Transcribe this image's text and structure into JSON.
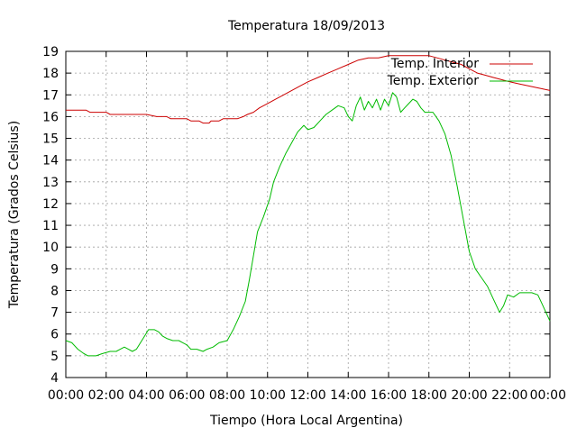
{
  "chart_data": {
    "type": "line",
    "title": "Temperatura 18/09/2013",
    "xlabel": "Tiempo (Hora Local Argentina)",
    "ylabel": "Temperatura (Grados Celsius)",
    "xlim": [
      0,
      24
    ],
    "ylim": [
      4,
      19
    ],
    "grid": true,
    "legend_position": "top-right",
    "x_tick_labels": [
      "00:00",
      "02:00",
      "04:00",
      "06:00",
      "08:00",
      "10:00",
      "12:00",
      "14:00",
      "16:00",
      "18:00",
      "20:00",
      "22:00",
      "00:00"
    ],
    "y_tick_labels": [
      "4",
      "5",
      "6",
      "7",
      "8",
      "9",
      "10",
      "11",
      "12",
      "13",
      "14",
      "15",
      "16",
      "17",
      "18",
      "19"
    ],
    "series": [
      {
        "name": "Temp. Interior",
        "color": "#cc0000",
        "points": [
          [
            0,
            16.3
          ],
          [
            1,
            16.3
          ],
          [
            1.2,
            16.2
          ],
          [
            2,
            16.2
          ],
          [
            2.2,
            16.1
          ],
          [
            3,
            16.1
          ],
          [
            4,
            16.1
          ],
          [
            4.5,
            16.0
          ],
          [
            5,
            16.0
          ],
          [
            5.2,
            15.9
          ],
          [
            6,
            15.9
          ],
          [
            6.2,
            15.8
          ],
          [
            6.6,
            15.8
          ],
          [
            6.8,
            15.7
          ],
          [
            7.1,
            15.7
          ],
          [
            7.2,
            15.8
          ],
          [
            7.6,
            15.8
          ],
          [
            7.8,
            15.9
          ],
          [
            8.5,
            15.9
          ],
          [
            8.8,
            16.0
          ],
          [
            9,
            16.1
          ],
          [
            9.3,
            16.2
          ],
          [
            9.6,
            16.4
          ],
          [
            10,
            16.6
          ],
          [
            10.4,
            16.8
          ],
          [
            10.8,
            17.0
          ],
          [
            11.2,
            17.2
          ],
          [
            11.6,
            17.4
          ],
          [
            12,
            17.6
          ],
          [
            12.5,
            17.8
          ],
          [
            13,
            18.0
          ],
          [
            13.5,
            18.2
          ],
          [
            14,
            18.4
          ],
          [
            14.5,
            18.6
          ],
          [
            15,
            18.7
          ],
          [
            15.5,
            18.7
          ],
          [
            16,
            18.8
          ],
          [
            17,
            18.8
          ],
          [
            17.5,
            18.8
          ],
          [
            18,
            18.8
          ],
          [
            18.4,
            18.7
          ],
          [
            18.8,
            18.6
          ],
          [
            19.2,
            18.5
          ],
          [
            19.6,
            18.4
          ],
          [
            20,
            18.2
          ],
          [
            20.4,
            18.0
          ],
          [
            20.8,
            17.9
          ],
          [
            21.2,
            17.8
          ],
          [
            21.6,
            17.7
          ],
          [
            22,
            17.6
          ],
          [
            22.5,
            17.5
          ],
          [
            23,
            17.4
          ],
          [
            23.5,
            17.3
          ],
          [
            24,
            17.2
          ]
        ]
      },
      {
        "name": "Temp. Exterior",
        "color": "#00bb00",
        "points": [
          [
            0,
            5.7
          ],
          [
            0.3,
            5.6
          ],
          [
            0.6,
            5.3
          ],
          [
            0.9,
            5.1
          ],
          [
            1.1,
            5.0
          ],
          [
            1.5,
            5.0
          ],
          [
            1.8,
            5.1
          ],
          [
            2.2,
            5.2
          ],
          [
            2.5,
            5.2
          ],
          [
            2.7,
            5.3
          ],
          [
            2.9,
            5.4
          ],
          [
            3.1,
            5.3
          ],
          [
            3.3,
            5.2
          ],
          [
            3.5,
            5.3
          ],
          [
            3.7,
            5.6
          ],
          [
            3.9,
            5.9
          ],
          [
            4.1,
            6.2
          ],
          [
            4.4,
            6.2
          ],
          [
            4.6,
            6.1
          ],
          [
            4.8,
            5.9
          ],
          [
            5.0,
            5.8
          ],
          [
            5.3,
            5.7
          ],
          [
            5.6,
            5.7
          ],
          [
            5.8,
            5.6
          ],
          [
            6.0,
            5.5
          ],
          [
            6.2,
            5.3
          ],
          [
            6.5,
            5.3
          ],
          [
            6.8,
            5.2
          ],
          [
            7.0,
            5.3
          ],
          [
            7.3,
            5.4
          ],
          [
            7.6,
            5.6
          ],
          [
            8.0,
            5.7
          ],
          [
            8.3,
            6.2
          ],
          [
            8.6,
            6.8
          ],
          [
            8.9,
            7.5
          ],
          [
            9.1,
            8.5
          ],
          [
            9.3,
            9.6
          ],
          [
            9.5,
            10.7
          ],
          [
            9.8,
            11.4
          ],
          [
            10.1,
            12.2
          ],
          [
            10.3,
            13.0
          ],
          [
            10.6,
            13.7
          ],
          [
            10.9,
            14.3
          ],
          [
            11.2,
            14.8
          ],
          [
            11.5,
            15.3
          ],
          [
            11.8,
            15.6
          ],
          [
            12.0,
            15.4
          ],
          [
            12.3,
            15.5
          ],
          [
            12.6,
            15.8
          ],
          [
            12.9,
            16.1
          ],
          [
            13.2,
            16.3
          ],
          [
            13.5,
            16.5
          ],
          [
            13.8,
            16.4
          ],
          [
            14.0,
            16.0
          ],
          [
            14.2,
            15.8
          ],
          [
            14.4,
            16.5
          ],
          [
            14.6,
            16.9
          ],
          [
            14.8,
            16.3
          ],
          [
            15.0,
            16.7
          ],
          [
            15.2,
            16.4
          ],
          [
            15.4,
            16.8
          ],
          [
            15.6,
            16.3
          ],
          [
            15.8,
            16.8
          ],
          [
            16.0,
            16.5
          ],
          [
            16.2,
            17.1
          ],
          [
            16.4,
            16.9
          ],
          [
            16.6,
            16.2
          ],
          [
            16.8,
            16.4
          ],
          [
            17.0,
            16.6
          ],
          [
            17.2,
            16.8
          ],
          [
            17.4,
            16.7
          ],
          [
            17.6,
            16.4
          ],
          [
            17.8,
            16.2
          ],
          [
            18.2,
            16.2
          ],
          [
            18.5,
            15.8
          ],
          [
            18.8,
            15.2
          ],
          [
            19.1,
            14.2
          ],
          [
            19.4,
            12.8
          ],
          [
            19.7,
            11.3
          ],
          [
            20.0,
            9.8
          ],
          [
            20.3,
            9.0
          ],
          [
            20.6,
            8.6
          ],
          [
            20.9,
            8.2
          ],
          [
            21.2,
            7.6
          ],
          [
            21.5,
            7.0
          ],
          [
            21.7,
            7.3
          ],
          [
            21.9,
            7.8
          ],
          [
            22.2,
            7.7
          ],
          [
            22.5,
            7.9
          ],
          [
            22.8,
            7.9
          ],
          [
            23.1,
            7.9
          ],
          [
            23.4,
            7.8
          ],
          [
            23.6,
            7.4
          ],
          [
            23.8,
            7.0
          ],
          [
            24.0,
            6.6
          ]
        ]
      }
    ]
  }
}
